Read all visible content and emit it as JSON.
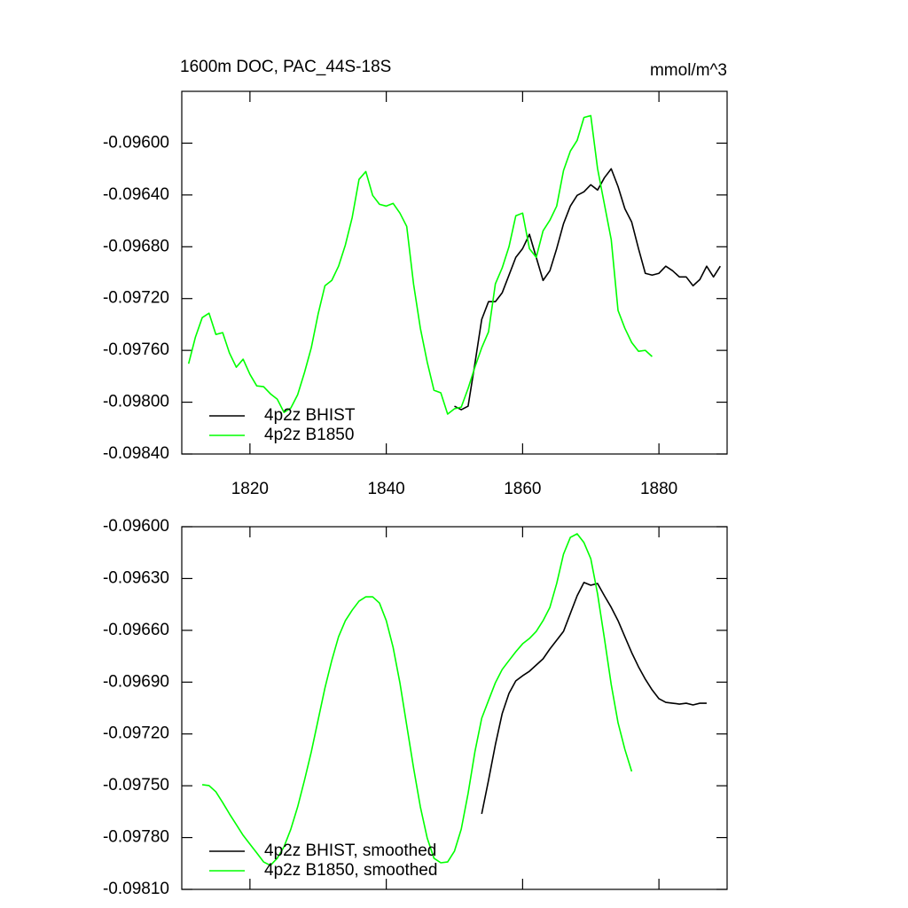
{
  "chart_data": [
    {
      "type": "line",
      "title": "1600m DOC, PAC_44S-18S",
      "units": "mmol/m^3",
      "x": [
        1811,
        1812,
        1813,
        1814,
        1815,
        1816,
        1817,
        1818,
        1819,
        1820,
        1821,
        1822,
        1823,
        1824,
        1825,
        1826,
        1827,
        1828,
        1829,
        1830,
        1831,
        1832,
        1833,
        1834,
        1835,
        1836,
        1837,
        1838,
        1839,
        1840,
        1841,
        1842,
        1843,
        1844,
        1845,
        1846,
        1847,
        1848,
        1849,
        1850,
        1851,
        1852,
        1853,
        1854,
        1855,
        1856,
        1857,
        1858,
        1859,
        1860,
        1861,
        1862,
        1863,
        1864,
        1865,
        1866,
        1867,
        1868,
        1869,
        1870,
        1871,
        1872,
        1873,
        1874,
        1875,
        1876,
        1877,
        1878,
        1879,
        1880,
        1881,
        1882,
        1883,
        1884,
        1885,
        1886,
        1887,
        1888,
        1889
      ],
      "series": [
        {
          "name": "4p2z BHIST",
          "color": "#000000",
          "values": [
            null,
            null,
            null,
            null,
            null,
            null,
            null,
            null,
            null,
            null,
            null,
            null,
            null,
            null,
            null,
            null,
            null,
            null,
            null,
            null,
            null,
            null,
            null,
            null,
            null,
            null,
            null,
            null,
            null,
            null,
            null,
            null,
            null,
            null,
            null,
            null,
            null,
            null,
            null,
            -0.098031,
            -0.098058,
            -0.098031,
            -0.097703,
            -0.097361,
            -0.097224,
            -0.097224,
            -0.097156,
            -0.097019,
            -0.096882,
            -0.096814,
            -0.096704,
            -0.096882,
            -0.09706,
            -0.096985,
            -0.096814,
            -0.096622,
            -0.096486,
            -0.096403,
            -0.096376,
            -0.096321,
            -0.096362,
            -0.096267,
            -0.096198,
            -0.096335,
            -0.096506,
            -0.096609,
            -0.096814,
            -0.097005,
            -0.097019,
            -0.097005,
            -0.09695,
            -0.096985,
            -0.097033,
            -0.097033,
            -0.097101,
            -0.097053,
            -0.09695,
            -0.097033,
            -0.09695
          ]
        },
        {
          "name": "4p2z B1850",
          "color": "#00ff00",
          "values": [
            -0.097703,
            -0.097498,
            -0.097347,
            -0.097313,
            -0.097477,
            -0.097463,
            -0.097621,
            -0.09773,
            -0.097668,
            -0.097785,
            -0.097874,
            -0.09788,
            -0.097935,
            -0.097976,
            -0.098079,
            -0.098045,
            -0.097942,
            -0.097771,
            -0.09758,
            -0.09732,
            -0.097101,
            -0.09706,
            -0.09695,
            -0.096786,
            -0.096574,
            -0.09628,
            -0.096219,
            -0.096403,
            -0.096472,
            -0.096486,
            -0.096465,
            -0.09654,
            -0.096643,
            -0.097087,
            -0.097429,
            -0.097689,
            -0.097908,
            -0.097928,
            -0.098092,
            -0.098051,
            -0.098038,
            -0.097894,
            -0.09773,
            -0.09758,
            -0.097457,
            -0.097087,
            -0.096964,
            -0.0968,
            -0.096561,
            -0.09654,
            -0.096814,
            -0.096882,
            -0.096677,
            -0.096595,
            -0.096486,
            -0.096212,
            -0.096062,
            -0.095979,
            -0.095802,
            -0.095788,
            -0.096198,
            -0.096472,
            -0.096745,
            -0.097292,
            -0.097429,
            -0.097539,
            -0.097607,
            -0.0976,
            -0.097648,
            null,
            null,
            null,
            null,
            null,
            null,
            null,
            null,
            null,
            null
          ]
        }
      ],
      "xlim": [
        1810,
        1890
      ],
      "xticks": [
        1820,
        1840,
        1860,
        1880
      ],
      "show_xtick_labels": true,
      "ylim": [
        -0.0984,
        -0.0956
      ],
      "yticks": [
        {
          "value": -0.0984,
          "label": "-0.09840"
        },
        {
          "value": -0.098,
          "label": "-0.09800"
        },
        {
          "value": -0.0976,
          "label": "-0.09760"
        },
        {
          "value": -0.0972,
          "label": "-0.09720"
        },
        {
          "value": -0.0968,
          "label": "-0.09680"
        },
        {
          "value": -0.0964,
          "label": "-0.09640"
        },
        {
          "value": -0.096,
          "label": "-0.09600"
        }
      ],
      "legend": "lower left"
    },
    {
      "type": "line",
      "x": [
        1813,
        1814,
        1815,
        1816,
        1817,
        1818,
        1819,
        1820,
        1821,
        1822,
        1823,
        1824,
        1825,
        1826,
        1827,
        1828,
        1829,
        1830,
        1831,
        1832,
        1833,
        1834,
        1835,
        1836,
        1837,
        1838,
        1839,
        1840,
        1841,
        1842,
        1843,
        1844,
        1845,
        1846,
        1847,
        1848,
        1849,
        1850,
        1851,
        1852,
        1853,
        1854,
        1855,
        1856,
        1857,
        1858,
        1859,
        1860,
        1861,
        1862,
        1863,
        1864,
        1865,
        1866,
        1867,
        1868,
        1869,
        1870,
        1871,
        1872,
        1873,
        1874,
        1875,
        1876,
        1877,
        1878,
        1879,
        1880,
        1881,
        1882,
        1883,
        1884,
        1885,
        1886,
        1887
      ],
      "series": [
        {
          "name": "4p2z BHIST, smoothed",
          "color": "#000000",
          "values": [
            null,
            null,
            null,
            null,
            null,
            null,
            null,
            null,
            null,
            null,
            null,
            null,
            null,
            null,
            null,
            null,
            null,
            null,
            null,
            null,
            null,
            null,
            null,
            null,
            null,
            null,
            null,
            null,
            null,
            null,
            null,
            null,
            null,
            null,
            null,
            null,
            null,
            null,
            null,
            null,
            null,
            -0.097663,
            -0.097468,
            -0.097263,
            -0.097083,
            -0.096965,
            -0.096893,
            -0.096863,
            -0.096837,
            -0.096801,
            -0.096765,
            -0.096708,
            -0.096657,
            -0.096606,
            -0.096503,
            -0.0964,
            -0.096323,
            -0.096339,
            -0.096329,
            -0.0964,
            -0.096467,
            -0.096544,
            -0.096637,
            -0.096729,
            -0.096811,
            -0.096883,
            -0.096945,
            -0.096996,
            -0.097017,
            -0.097022,
            -0.097027,
            -0.097022,
            -0.097032,
            -0.097022,
            -0.097022
          ]
        },
        {
          "name": "4p2z B1850, smoothed",
          "color": "#00ff00",
          "values": [
            -0.097494,
            -0.097499,
            -0.097535,
            -0.097597,
            -0.097663,
            -0.097725,
            -0.097787,
            -0.097838,
            -0.097889,
            -0.097941,
            -0.097961,
            -0.09792,
            -0.097853,
            -0.097751,
            -0.097622,
            -0.097468,
            -0.097304,
            -0.097119,
            -0.096934,
            -0.096775,
            -0.096637,
            -0.096544,
            -0.096483,
            -0.096431,
            -0.096406,
            -0.096406,
            -0.096442,
            -0.096544,
            -0.096698,
            -0.096904,
            -0.09715,
            -0.097396,
            -0.097622,
            -0.097802,
            -0.09792,
            -0.097946,
            -0.097941,
            -0.097879,
            -0.097751,
            -0.097545,
            -0.097304,
            -0.097109,
            -0.097006,
            -0.096904,
            -0.096827,
            -0.096775,
            -0.096724,
            -0.096678,
            -0.096647,
            -0.096606,
            -0.096544,
            -0.096467,
            -0.096329,
            -0.096159,
            -0.096062,
            -0.096041,
            -0.096092,
            -0.096185,
            -0.09639,
            -0.096647,
            -0.096914,
            -0.097135,
            -0.097289,
            -0.097417,
            null,
            null,
            null,
            null,
            null,
            null,
            null,
            null,
            null,
            null,
            null
          ]
        }
      ],
      "xlim": [
        1810,
        1890
      ],
      "xticks": [
        1820,
        1840,
        1860,
        1880
      ],
      "show_xtick_labels": false,
      "ylim": [
        -0.0981,
        -0.096
      ],
      "yticks": [
        {
          "value": -0.0981,
          "label": "-0.09810"
        },
        {
          "value": -0.0978,
          "label": "-0.09780"
        },
        {
          "value": -0.0975,
          "label": "-0.09750"
        },
        {
          "value": -0.0972,
          "label": "-0.09720"
        },
        {
          "value": -0.0969,
          "label": "-0.09690"
        },
        {
          "value": -0.0966,
          "label": "-0.09660"
        },
        {
          "value": -0.0963,
          "label": "-0.09630"
        },
        {
          "value": -0.096,
          "label": "-0.09600"
        }
      ],
      "legend": "lower left"
    }
  ]
}
